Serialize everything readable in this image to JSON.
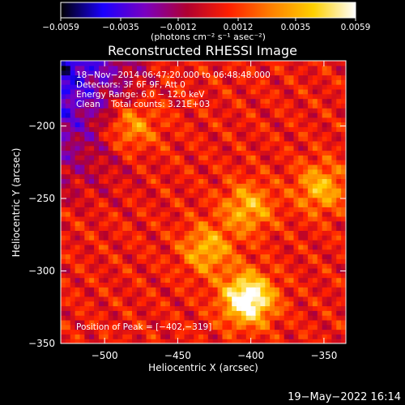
{
  "chart_data": {
    "type": "heatmap",
    "title": "Reconstructed RHESSI Image",
    "xlabel": "Heliocentric X (arcsec)",
    "ylabel": "Heliocentric Y (arcsec)",
    "xlim": [
      -530,
      -335
    ],
    "ylim": [
      -350,
      -155
    ],
    "x_ticks": [
      -500,
      -450,
      -400,
      -350
    ],
    "y_ticks": [
      -350,
      -300,
      -250,
      -200
    ],
    "x_tick_labels": [
      "−500",
      "−450",
      "−400",
      "−350"
    ],
    "y_tick_labels": [
      "−350",
      "−300",
      "−250",
      "−200"
    ],
    "colorbar": {
      "range": [
        -0.0059,
        0.0059
      ],
      "ticks": [
        -0.0059,
        -0.0035,
        -0.0012,
        0.0012,
        0.0035,
        0.0059
      ],
      "tick_labels": [
        "−0.0059",
        "−0.0035",
        "−0.0012",
        "0.0012",
        "0.0035",
        "0.0059"
      ],
      "unit_label": "(photons cm⁻² s⁻¹ asec⁻²)"
    },
    "annotations": [
      "18−Nov−2014 06:47:20.000 to 06:48:48.000",
      "Detectors: 3F 6F 9F, Att 0",
      "Energy Range: 6.0 − 12.0 keV",
      "Clean    Total counts: 3.21E+03"
    ],
    "peak_label": "Position of Peak = [−402,−319]",
    "peak": {
      "x": -402,
      "y": -319
    },
    "bright_sources": [
      {
        "x": -402,
        "y": -256
      },
      {
        "x": -402,
        "y": -319
      },
      {
        "x": -482,
        "y": -200
      },
      {
        "x": -352,
        "y": -242
      },
      {
        "x": -430,
        "y": -285
      }
    ],
    "colormap": [
      "#000000",
      "#1a00ff",
      "#7a00c0",
      "#b00030",
      "#ff2000",
      "#ff8000",
      "#ffd000",
      "#ffffff"
    ],
    "timestamp": "19−May−2022 16:14"
  }
}
